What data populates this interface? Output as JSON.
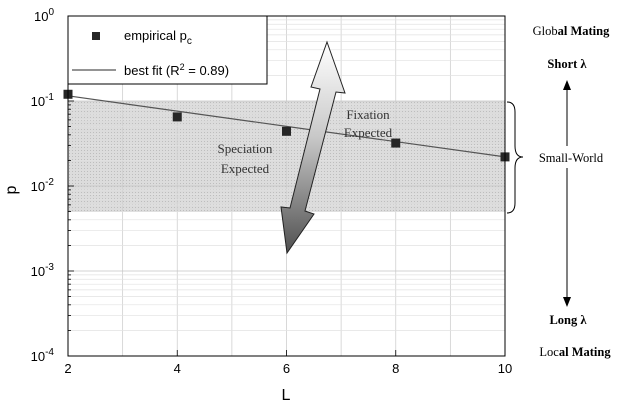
{
  "chart_data": {
    "type": "scatter",
    "title": "",
    "xlabel": "L",
    "ylabel": "p",
    "xlim": [
      2,
      10
    ],
    "ylim": [
      0.0001,
      1
    ],
    "y_scale": "log",
    "grid": true,
    "legend_position": "top-left",
    "x_ticks": [
      2,
      4,
      6,
      8,
      10
    ],
    "x_tick_labels": [
      "2",
      "4",
      "6",
      "8",
      "10"
    ],
    "y_ticks": [
      0.0001,
      0.001,
      0.01,
      0.1,
      1
    ],
    "y_tick_labels": [
      {
        "base": "10",
        "exp": "-4"
      },
      {
        "base": "10",
        "exp": "-3"
      },
      {
        "base": "10",
        "exp": "-2"
      },
      {
        "base": "10",
        "exp": "-1"
      },
      {
        "base": "10",
        "exp": "0"
      }
    ],
    "series": [
      {
        "name": "empirical p",
        "name_subscript": "c",
        "kind": "markers",
        "x": [
          2,
          4,
          6,
          8,
          10
        ],
        "y": [
          0.12,
          0.065,
          0.044,
          0.032,
          0.022
        ]
      },
      {
        "name": "best fit (R",
        "name_sup": "2",
        "name_tail": " = 0.89)",
        "kind": "line",
        "x": [
          2,
          10
        ],
        "y": [
          0.115,
          0.022
        ]
      }
    ],
    "shaded_band": {
      "y_low": 0.005,
      "y_high": 0.1,
      "color": "#d8d8d8"
    },
    "annotations": {
      "speciation": [
        "Speciation",
        "Expected"
      ],
      "fixation": [
        "Fixation",
        "Expected"
      ]
    },
    "side_labels": {
      "global_mating": {
        "prefix": "Glob",
        "bold": "al Mating"
      },
      "short_lambda": "Short λ",
      "small_world": "Small-World",
      "long_lambda": "Long λ",
      "local_mating": {
        "prefix": "Loc",
        "bold": "al Mating"
      }
    },
    "colors": {
      "marker": "#262626",
      "line": "#555555",
      "band": "#d8d8d8",
      "arrow_light": "#ffffff",
      "arrow_dark": "#555555"
    }
  }
}
